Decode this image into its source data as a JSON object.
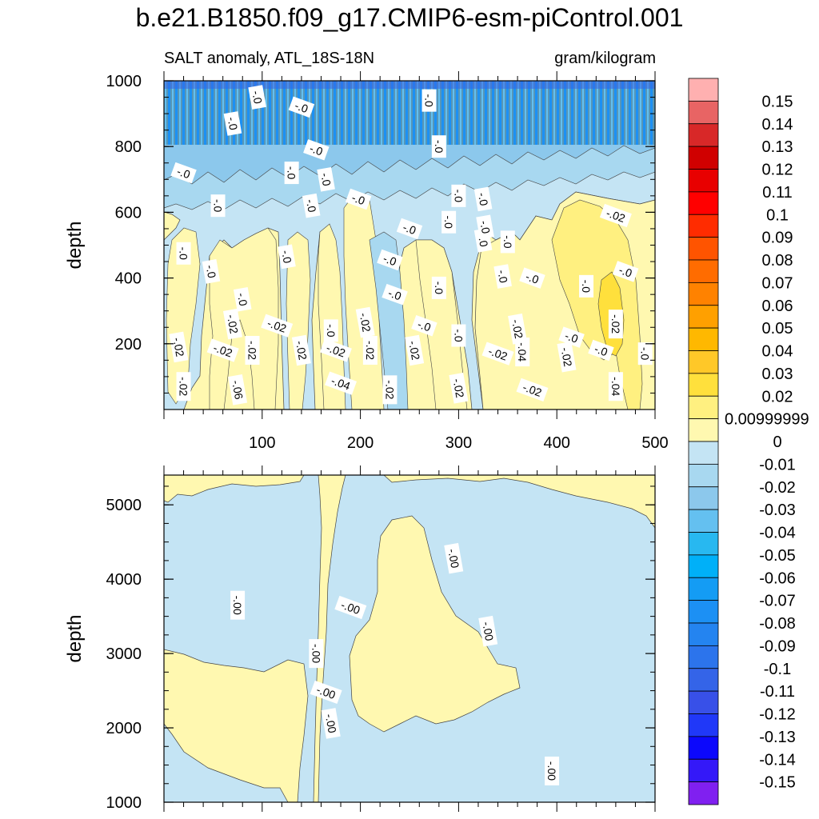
{
  "title": "b.e21.B1850.f09_g17.CMIP6-esm-piControl.001",
  "subtitle_left": "SALT anomaly, ATL_18S-18N",
  "subtitle_right": "gram/kilogram",
  "chart_data": [
    {
      "type": "heatmap",
      "panel": "upper",
      "ylabel": "depth",
      "xlabel": "",
      "xlim": [
        0,
        500
      ],
      "ylim": [
        1000,
        0
      ],
      "x_ticks": [
        100,
        200,
        300,
        400,
        500
      ],
      "y_ticks": [
        200,
        400,
        600,
        800,
        1000
      ],
      "contour_labels": [
        {
          "text": "-.02",
          "x": 20,
          "y": 70
        },
        {
          "text": "-.06",
          "x": 75,
          "y": 60
        },
        {
          "text": "-.04",
          "x": 180,
          "y": 80
        },
        {
          "text": "-.02",
          "x": 230,
          "y": 60
        },
        {
          "text": "-.02",
          "x": 300,
          "y": 65
        },
        {
          "text": "-.02",
          "x": 375,
          "y": 60
        },
        {
          "text": "-.04",
          "x": 460,
          "y": 70
        },
        {
          "text": "-.02",
          "x": 15,
          "y": 190
        },
        {
          "text": "-.02",
          "x": 60,
          "y": 180
        },
        {
          "text": "-.02",
          "x": 90,
          "y": 180
        },
        {
          "text": "-.02",
          "x": 140,
          "y": 180
        },
        {
          "text": "-.02",
          "x": 175,
          "y": 180
        },
        {
          "text": "-.02",
          "x": 210,
          "y": 180
        },
        {
          "text": "-.02",
          "x": 255,
          "y": 180
        },
        {
          "text": "-.02",
          "x": 340,
          "y": 170
        },
        {
          "text": "-.04",
          "x": 365,
          "y": 175
        },
        {
          "text": "-.02",
          "x": 410,
          "y": 160
        },
        {
          "text": "-.0",
          "x": 445,
          "y": 180
        },
        {
          "text": "-.0",
          "x": 490,
          "y": 170
        },
        {
          "text": "-.02",
          "x": 70,
          "y": 260
        },
        {
          "text": "-.02",
          "x": 115,
          "y": 255
        },
        {
          "text": "-.0",
          "x": 170,
          "y": 240
        },
        {
          "text": "-.02",
          "x": 205,
          "y": 265
        },
        {
          "text": "-.0",
          "x": 265,
          "y": 255
        },
        {
          "text": "-.0",
          "x": 300,
          "y": 225
        },
        {
          "text": "-.02",
          "x": 360,
          "y": 245
        },
        {
          "text": "-.0",
          "x": 415,
          "y": 220
        },
        {
          "text": "-.02",
          "x": 460,
          "y": 260
        },
        {
          "text": "-.0",
          "x": 80,
          "y": 335
        },
        {
          "text": "-.0",
          "x": 235,
          "y": 350
        },
        {
          "text": "-.0",
          "x": 280,
          "y": 370
        },
        {
          "text": "-.0",
          "x": 345,
          "y": 405
        },
        {
          "text": "-.0",
          "x": 375,
          "y": 400
        },
        {
          "text": "-.0",
          "x": 430,
          "y": 375
        },
        {
          "text": "-.0",
          "x": 48,
          "y": 420
        },
        {
          "text": "-.0",
          "x": 470,
          "y": 420
        },
        {
          "text": "-.0",
          "x": 20,
          "y": 475
        },
        {
          "text": "-.0",
          "x": 125,
          "y": 465
        },
        {
          "text": "-.0",
          "x": 230,
          "y": 455
        },
        {
          "text": "-.0",
          "x": 350,
          "y": 510
        },
        {
          "text": "-.0",
          "x": 325,
          "y": 515
        },
        {
          "text": "-.0",
          "x": 250,
          "y": 550
        },
        {
          "text": "-.0",
          "x": 290,
          "y": 570
        },
        {
          "text": "-.0",
          "x": 327,
          "y": 555
        },
        {
          "text": "-.02",
          "x": 460,
          "y": 590
        },
        {
          "text": "-.0",
          "x": 55,
          "y": 620
        },
        {
          "text": "-.0",
          "x": 150,
          "y": 620
        },
        {
          "text": "-.0",
          "x": 198,
          "y": 640
        },
        {
          "text": "-.0",
          "x": 300,
          "y": 650
        },
        {
          "text": "-.0",
          "x": 325,
          "y": 640
        },
        {
          "text": "-.0",
          "x": 20,
          "y": 720
        },
        {
          "text": "-.0",
          "x": 130,
          "y": 720
        },
        {
          "text": "-.0",
          "x": 165,
          "y": 700
        },
        {
          "text": "-.0",
          "x": 155,
          "y": 790
        },
        {
          "text": "-.0",
          "x": 280,
          "y": 800
        },
        {
          "text": "-.0",
          "x": 70,
          "y": 870
        },
        {
          "text": "-.0",
          "x": 140,
          "y": 920
        },
        {
          "text": "-.0",
          "x": 270,
          "y": 940
        },
        {
          "text": "-.0",
          "x": 95,
          "y": 950
        }
      ]
    },
    {
      "type": "heatmap",
      "panel": "lower",
      "ylabel": "depth",
      "xlabel": "",
      "xlim": [
        0,
        500
      ],
      "ylim": [
        5400,
        1000
      ],
      "x_ticks": [],
      "y_ticks": [
        1000,
        2000,
        3000,
        4000,
        5000
      ],
      "contour_labels": [
        {
          "text": "-.00",
          "x": 395,
          "y": 1420
        },
        {
          "text": "-.00",
          "x": 170,
          "y": 2060
        },
        {
          "text": "-.00",
          "x": 165,
          "y": 2480
        },
        {
          "text": "-.00",
          "x": 155,
          "y": 3000
        },
        {
          "text": "-.00",
          "x": 330,
          "y": 3300
        },
        {
          "text": "-.00",
          "x": 190,
          "y": 3620
        },
        {
          "text": "-.00",
          "x": 75,
          "y": 3650
        },
        {
          "text": "-.00",
          "x": 295,
          "y": 4280
        }
      ]
    }
  ],
  "colorbar": {
    "label_values": [
      "0.15",
      "0.14",
      "0.13",
      "0.12",
      "0.11",
      "0.1",
      "0.09",
      "0.08",
      "0.07",
      "0.06",
      "0.05",
      "0.04",
      "0.03",
      "0.02",
      "0.00999999",
      "0",
      "-0.01",
      "-0.02",
      "-0.03",
      "-0.04",
      "-0.05",
      "-0.06",
      "-0.07",
      "-0.08",
      "-0.09",
      "-0.1",
      "-0.11",
      "-0.12",
      "-0.13",
      "-0.14",
      "-0.15"
    ],
    "colors": [
      "#ffb0b0",
      "#e86464",
      "#d82828",
      "#d00000",
      "#e80000",
      "#ff0000",
      "#ff2c00",
      "#ff5400",
      "#ff6c00",
      "#ff8200",
      "#ffa000",
      "#ffb800",
      "#ffc828",
      "#ffe03c",
      "#fff080",
      "#fff8b0",
      "#c4e4f4",
      "#a8d8f0",
      "#8cc8ec",
      "#64c0f0",
      "#28b8f0",
      "#00b0f8",
      "#149cf4",
      "#1c90f4",
      "#2484f0",
      "#2c74ec",
      "#3464e8",
      "#3850e8",
      "#2038f8",
      "#0c08fc",
      "#3418f8",
      "#8020f0"
    ]
  },
  "colors": {
    "zero_yellow": "#fff8b0",
    "neg_light_blue": "#c4e4f4",
    "neg_blue_2": "#a8d8f0",
    "neg_blue_3": "#8cc8ec",
    "neg_blue_4": "#64c0f0",
    "pos_yellow_2": "#ffe03c",
    "pos_yellow_1": "#fff080"
  }
}
